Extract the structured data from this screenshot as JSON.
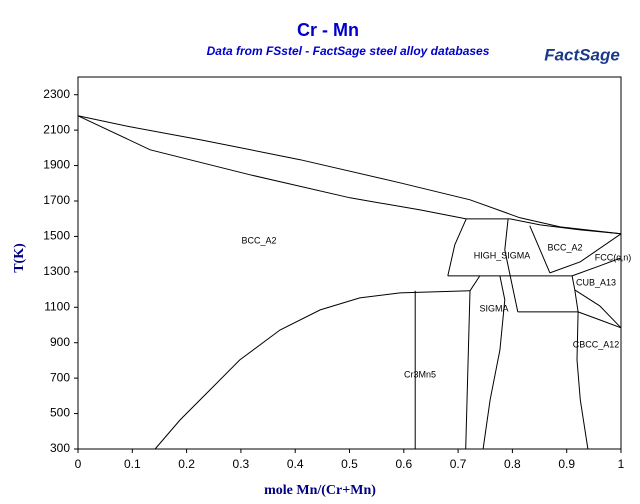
{
  "chart_data": {
    "type": "line",
    "title": "Cr - Mn",
    "subtitle": "Data from FSstel - FactSage steel alloy databases",
    "logo": "FactSage",
    "x_label": "mole Mn/(Cr+Mn)",
    "y_label": "T(K)",
    "color": "#000000",
    "xlim": [
      0,
      1
    ],
    "ylim": [
      300,
      2400
    ],
    "xticks": [
      0,
      0.1,
      0.2,
      0.3,
      0.4,
      0.5,
      0.6,
      0.7,
      0.8,
      0.9,
      1
    ],
    "yticks": [
      300,
      500,
      700,
      900,
      1100,
      1300,
      1500,
      1700,
      1900,
      2100,
      2300
    ],
    "annotations": [
      "BCC_A2",
      "HIGH_SIGMA",
      "BCC_A2",
      "FCC(c,n)",
      "CUB_A13",
      "SIGMA",
      "CBCC_A12",
      "Cr3Mn5"
    ],
    "series": [
      {
        "x": [
          0,
          0.096,
          0.225,
          0.409,
          0.593,
          0.722,
          0.814,
          0.888,
          1
        ],
        "values": [
          2181,
          2119,
          2046,
          1933,
          1803,
          1707,
          1605,
          1554,
          1515
        ]
      },
      {
        "x": [
          0,
          0.133,
          0.317,
          0.501,
          0.63,
          0.715,
          0.796,
          0.851,
          0.925,
          1
        ],
        "values": [
          2181,
          1989,
          1848,
          1718,
          1650,
          1599,
          1599,
          1565,
          1537,
          1515
        ]
      },
      {
        "x": [
          0.142,
          0.188,
          0.243,
          0.298,
          0.372,
          0.446,
          0.519,
          0.593,
          0.722
        ],
        "values": [
          300,
          464,
          633,
          803,
          972,
          1085,
          1153,
          1181,
          1193
        ]
      },
      {
        "x": [
          0.681,
          0.91
        ],
        "values": [
          1277,
          1277
        ]
      },
      {
        "x": [
          0.715,
          0.694,
          0.681
        ],
        "values": [
          1599,
          1453,
          1277
        ]
      },
      {
        "x": [
          0.722,
          0.74
        ],
        "values": [
          1193,
          1277
        ]
      },
      {
        "x": [
          0.621,
          0.621
        ],
        "values": [
          1193,
          300
        ]
      },
      {
        "x": [
          0.722,
          0.714
        ],
        "values": [
          1193,
          300
        ]
      },
      {
        "x": [
          0.777,
          0.786,
          0.777,
          0.759,
          0.746
        ],
        "values": [
          1277,
          1142,
          859,
          577,
          300
        ]
      },
      {
        "x": [
          0.792,
          0.786,
          0.796,
          0.81
        ],
        "values": [
          1599,
          1424,
          1277,
          1074
        ]
      },
      {
        "x": [
          0.81,
          0.921
        ],
        "values": [
          1074,
          1074
        ]
      },
      {
        "x": [
          0.91,
          0.915,
          0.921
        ],
        "values": [
          1277,
          1198,
          1074
        ]
      },
      {
        "x": [
          0.832,
          0.851,
          0.869
        ],
        "values": [
          1560,
          1424,
          1294
        ]
      },
      {
        "x": [
          0.869,
          0.925,
          1
        ],
        "values": [
          1294,
          1357,
          1515
        ]
      },
      {
        "x": [
          0.91,
          0.961,
          1
        ],
        "values": [
          1277,
          1334,
          1379
        ]
      },
      {
        "x": [
          0.921,
          0.961,
          1
        ],
        "values": [
          1074,
          1029,
          984
        ]
      },
      {
        "x": [
          0.915,
          0.961,
          1
        ],
        "values": [
          1198,
          1108,
          984
        ]
      },
      {
        "x": [
          0.921,
          0.919,
          0.925,
          0.939
        ],
        "values": [
          1074,
          803,
          577,
          300
        ]
      }
    ]
  }
}
